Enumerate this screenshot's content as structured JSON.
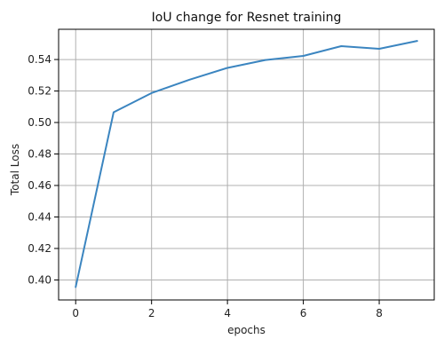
{
  "chart_data": {
    "type": "line",
    "title": "IoU change for Resnet training",
    "xlabel": "epochs",
    "ylabel": "Total Loss",
    "xlim": [
      -0.45,
      9.45
    ],
    "ylim": [
      0.3873,
      0.5592
    ],
    "x_ticks": [
      0,
      2,
      4,
      6,
      8
    ],
    "y_ticks": [
      0.4,
      0.42,
      0.44,
      0.46,
      0.48,
      0.5,
      0.52,
      0.54
    ],
    "grid": true,
    "series": [
      {
        "x": [
          0,
          1,
          2,
          3,
          4,
          5,
          6,
          7,
          8,
          9
        ],
        "values": [
          0.3955,
          0.5065,
          0.5187,
          0.5272,
          0.5347,
          0.5397,
          0.5423,
          0.5485,
          0.5468,
          0.5518
        ]
      }
    ],
    "colors": {
      "line": "#3b85c0",
      "grid": "#b0b0b0",
      "axis": "#000000",
      "text": "#222222"
    }
  }
}
